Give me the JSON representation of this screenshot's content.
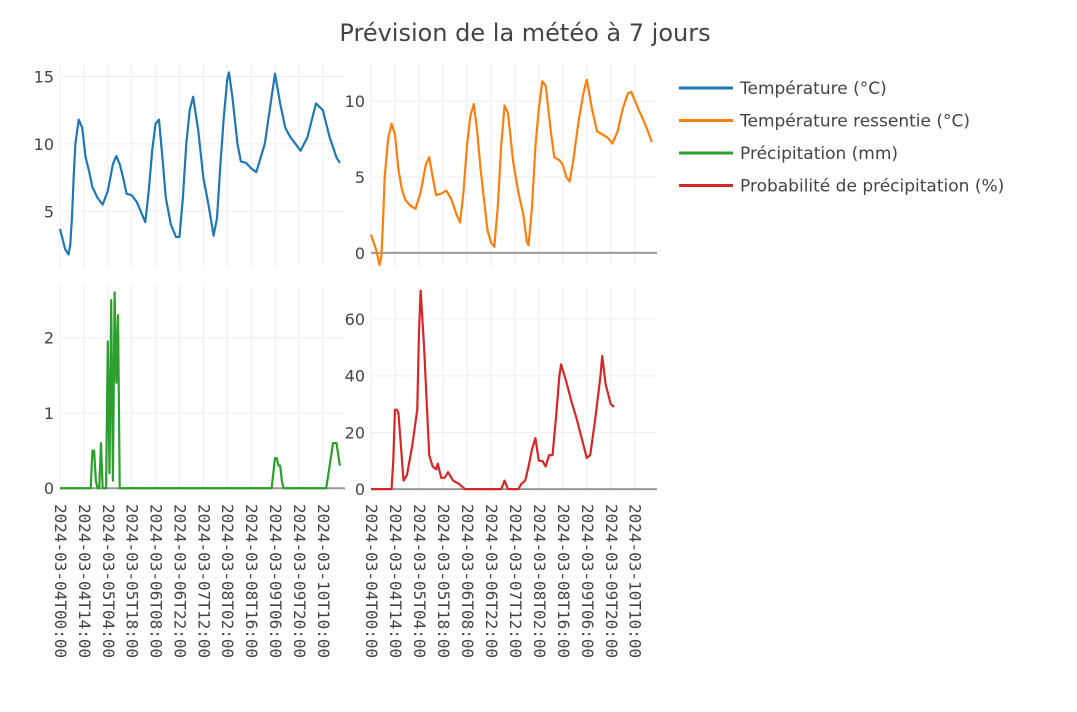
{
  "chart_data": {
    "type": "line",
    "title": "Prévision de la météo à 7 jours",
    "legend_position": "right",
    "grid": true,
    "x_tick_labels": [
      "2024-03-04T00:00",
      "2024-03-04T14:00",
      "2024-03-05T04:00",
      "2024-03-05T18:00",
      "2024-03-06T08:00",
      "2024-03-06T22:00",
      "2024-03-07T12:00",
      "2024-03-08T02:00",
      "2024-03-08T16:00",
      "2024-03-09T06:00",
      "2024-03-09T20:00",
      "2024-03-10T10:00"
    ],
    "x_range": [
      "2024-03-04T00:00",
      "2024-03-10T23:00"
    ],
    "series": [
      {
        "name": "Température (°C)",
        "color": "#1f77b4",
        "subplot": "top-left",
        "y_ticks": [
          5,
          10,
          15
        ],
        "ylim": [
          0.8,
          16.0
        ],
        "points": [
          [
            "2024-03-04T00:00",
            3.7
          ],
          [
            "2024-03-04T03:00",
            2.2
          ],
          [
            "2024-03-04T05:00",
            1.8
          ],
          [
            "2024-03-04T06:00",
            2.5
          ],
          [
            "2024-03-04T07:00",
            4.5
          ],
          [
            "2024-03-04T08:00",
            7.5
          ],
          [
            "2024-03-04T09:00",
            10
          ],
          [
            "2024-03-04T11:00",
            11.8
          ],
          [
            "2024-03-04T13:00",
            11.2
          ],
          [
            "2024-03-04T15:00",
            9
          ],
          [
            "2024-03-04T17:00",
            8
          ],
          [
            "2024-03-04T19:00",
            6.8
          ],
          [
            "2024-03-04T22:00",
            6
          ],
          [
            "2024-03-05T01:00",
            5.5
          ],
          [
            "2024-03-05T04:00",
            6.5
          ],
          [
            "2024-03-05T07:00",
            8.5
          ],
          [
            "2024-03-05T09:00",
            9.1
          ],
          [
            "2024-03-05T11:00",
            8.5
          ],
          [
            "2024-03-05T13:00",
            7.5
          ],
          [
            "2024-03-05T15:00",
            6.3
          ],
          [
            "2024-03-05T18:00",
            6.2
          ],
          [
            "2024-03-05T21:00",
            5.7
          ],
          [
            "2024-03-06T00:00",
            4.8
          ],
          [
            "2024-03-06T02:00",
            4.2
          ],
          [
            "2024-03-06T04:00",
            6.5
          ],
          [
            "2024-03-06T06:00",
            9.5
          ],
          [
            "2024-03-06T08:00",
            11.5
          ],
          [
            "2024-03-06T10:00",
            11.8
          ],
          [
            "2024-03-06T12:00",
            9
          ],
          [
            "2024-03-06T14:00",
            6
          ],
          [
            "2024-03-06T17:00",
            4
          ],
          [
            "2024-03-06T20:00",
            3.1
          ],
          [
            "2024-03-06T22:00",
            3.1
          ],
          [
            "2024-03-07T00:00",
            6
          ],
          [
            "2024-03-07T02:00",
            10
          ],
          [
            "2024-03-07T04:00",
            12.5
          ],
          [
            "2024-03-07T06:00",
            13.5
          ],
          [
            "2024-03-07T09:00",
            11
          ],
          [
            "2024-03-07T12:00",
            7.5
          ],
          [
            "2024-03-07T15:00",
            5.5
          ],
          [
            "2024-03-07T18:00",
            3.2
          ],
          [
            "2024-03-07T20:00",
            4.5
          ],
          [
            "2024-03-07T22:00",
            8.5
          ],
          [
            "2024-03-08T00:00",
            12
          ],
          [
            "2024-03-08T02:00",
            14.8
          ],
          [
            "2024-03-08T03:00",
            15.3
          ],
          [
            "2024-03-08T05:00",
            13.5
          ],
          [
            "2024-03-08T08:00",
            10
          ],
          [
            "2024-03-08T10:00",
            8.7
          ],
          [
            "2024-03-08T13:00",
            8.6
          ],
          [
            "2024-03-08T16:00",
            8.2
          ],
          [
            "2024-03-08T19:00",
            7.9
          ],
          [
            "2024-03-09T00:00",
            10
          ],
          [
            "2024-03-09T04:00",
            13.5
          ],
          [
            "2024-03-09T06:00",
            15.2
          ],
          [
            "2024-03-09T09:00",
            13
          ],
          [
            "2024-03-09T12:00",
            11.2
          ],
          [
            "2024-03-09T15:00",
            10.5
          ],
          [
            "2024-03-09T18:00",
            10
          ],
          [
            "2024-03-09T21:00",
            9.5
          ],
          [
            "2024-03-10T01:00",
            10.5
          ],
          [
            "2024-03-10T04:00",
            12
          ],
          [
            "2024-03-10T06:00",
            13
          ],
          [
            "2024-03-10T10:00",
            12.5
          ],
          [
            "2024-03-10T14:00",
            10.5
          ],
          [
            "2024-03-10T18:00",
            9
          ],
          [
            "2024-03-10T20:00",
            8.6
          ]
        ]
      },
      {
        "name": "Température ressentie (°C)",
        "color": "#ff7f0e",
        "subplot": "top-right",
        "y_ticks": [
          0,
          5,
          10
        ],
        "ylim": [
          -1.0,
          12.5
        ],
        "points": [
          [
            "2024-03-04T00:00",
            1.2
          ],
          [
            "2024-03-04T03:00",
            0.2
          ],
          [
            "2024-03-04T05:00",
            -0.8
          ],
          [
            "2024-03-04T06:00",
            -0.3
          ],
          [
            "2024-03-04T07:00",
            2
          ],
          [
            "2024-03-04T08:00",
            5
          ],
          [
            "2024-03-04T10:00",
            7.5
          ],
          [
            "2024-03-04T12:00",
            8.5
          ],
          [
            "2024-03-04T14:00",
            7.8
          ],
          [
            "2024-03-04T16:00",
            5.5
          ],
          [
            "2024-03-04T18:00",
            4.2
          ],
          [
            "2024-03-04T20:00",
            3.5
          ],
          [
            "2024-03-04T23:00",
            3.1
          ],
          [
            "2024-03-05T02:00",
            2.9
          ],
          [
            "2024-03-05T05:00",
            4
          ],
          [
            "2024-03-05T08:00",
            5.8
          ],
          [
            "2024-03-05T10:00",
            6.3
          ],
          [
            "2024-03-05T12:00",
            5
          ],
          [
            "2024-03-05T14:00",
            3.8
          ],
          [
            "2024-03-05T17:00",
            3.9
          ],
          [
            "2024-03-05T20:00",
            4.1
          ],
          [
            "2024-03-05T23:00",
            3.5
          ],
          [
            "2024-03-06T02:00",
            2.5
          ],
          [
            "2024-03-06T04:00",
            2
          ],
          [
            "2024-03-06T06:00",
            4
          ],
          [
            "2024-03-06T08:00",
            7
          ],
          [
            "2024-03-06T10:00",
            9
          ],
          [
            "2024-03-06T12:00",
            9.8
          ],
          [
            "2024-03-06T14:00",
            8
          ],
          [
            "2024-03-06T16:00",
            5.5
          ],
          [
            "2024-03-06T18:00",
            3.5
          ],
          [
            "2024-03-06T20:00",
            1.5
          ],
          [
            "2024-03-06T22:00",
            0.7
          ],
          [
            "2024-03-07T00:00",
            0.4
          ],
          [
            "2024-03-07T02:00",
            3
          ],
          [
            "2024-03-07T04:00",
            7
          ],
          [
            "2024-03-07T06:00",
            9.7
          ],
          [
            "2024-03-07T08:00",
            9.2
          ],
          [
            "2024-03-07T11:00",
            6
          ],
          [
            "2024-03-07T14:00",
            4
          ],
          [
            "2024-03-07T17:00",
            2.5
          ],
          [
            "2024-03-07T19:00",
            0.7
          ],
          [
            "2024-03-07T20:00",
            0.5
          ],
          [
            "2024-03-07T22:00",
            3
          ],
          [
            "2024-03-08T00:00",
            7
          ],
          [
            "2024-03-08T02:00",
            9.5
          ],
          [
            "2024-03-08T04:00",
            11.3
          ],
          [
            "2024-03-08T06:00",
            11
          ],
          [
            "2024-03-08T09:00",
            8
          ],
          [
            "2024-03-08T11:00",
            6.3
          ],
          [
            "2024-03-08T14:00",
            6.1
          ],
          [
            "2024-03-08T16:00",
            5.8
          ],
          [
            "2024-03-08T18:00",
            5
          ],
          [
            "2024-03-08T20:00",
            4.7
          ],
          [
            "2024-03-08T22:00",
            6
          ],
          [
            "2024-03-09T01:00",
            8.5
          ],
          [
            "2024-03-09T04:00",
            10.5
          ],
          [
            "2024-03-09T06:00",
            11.4
          ],
          [
            "2024-03-09T09:00",
            9.5
          ],
          [
            "2024-03-09T12:00",
            8
          ],
          [
            "2024-03-09T15:00",
            7.8
          ],
          [
            "2024-03-09T18:00",
            7.6
          ],
          [
            "2024-03-09T21:00",
            7.2
          ],
          [
            "2024-03-10T00:00",
            8
          ],
          [
            "2024-03-10T03:00",
            9.5
          ],
          [
            "2024-03-10T06:00",
            10.5
          ],
          [
            "2024-03-10T08:00",
            10.6
          ],
          [
            "2024-03-10T12:00",
            9.5
          ],
          [
            "2024-03-10T16:00",
            8.5
          ],
          [
            "2024-03-10T20:00",
            7.3
          ]
        ]
      },
      {
        "name": "Précipitation (mm)",
        "color": "#2ca02c",
        "subplot": "bottom-left",
        "y_ticks": [
          0,
          1,
          2
        ],
        "ylim": [
          -0.05,
          2.7
        ],
        "points": [
          [
            "2024-03-04T00:00",
            0
          ],
          [
            "2024-03-04T18:00",
            0
          ],
          [
            "2024-03-04T19:00",
            0.5
          ],
          [
            "2024-03-04T20:00",
            0.5
          ],
          [
            "2024-03-04T21:00",
            0.1
          ],
          [
            "2024-03-04T22:00",
            0
          ],
          [
            "2024-03-04T23:00",
            0
          ],
          [
            "2024-03-05T00:00",
            0.6
          ],
          [
            "2024-03-05T01:00",
            0
          ],
          [
            "2024-03-05T03:00",
            0
          ],
          [
            "2024-03-05T04:00",
            1.95
          ],
          [
            "2024-03-05T05:00",
            0.2
          ],
          [
            "2024-03-05T06:00",
            2.5
          ],
          [
            "2024-03-05T07:00",
            0.1
          ],
          [
            "2024-03-05T08:00",
            2.6
          ],
          [
            "2024-03-05T09:00",
            1.4
          ],
          [
            "2024-03-05T10:00",
            2.3
          ],
          [
            "2024-03-05T11:00",
            0
          ],
          [
            "2024-03-09T00:00",
            0
          ],
          [
            "2024-03-09T04:00",
            0
          ],
          [
            "2024-03-09T05:00",
            0.2
          ],
          [
            "2024-03-09T06:00",
            0.4
          ],
          [
            "2024-03-09T07:00",
            0.4
          ],
          [
            "2024-03-09T08:00",
            0.3
          ],
          [
            "2024-03-09T09:00",
            0.3
          ],
          [
            "2024-03-09T10:00",
            0.1
          ],
          [
            "2024-03-09T11:00",
            0
          ],
          [
            "2024-03-10T12:00",
            0
          ],
          [
            "2024-03-10T14:00",
            0.3
          ],
          [
            "2024-03-10T16:00",
            0.6
          ],
          [
            "2024-03-10T18:00",
            0.6
          ],
          [
            "2024-03-10T20:00",
            0.3
          ]
        ]
      },
      {
        "name": "Probabilité de précipitation (%)",
        "color": "#d62728",
        "subplot": "bottom-right",
        "y_ticks": [
          0,
          20,
          40,
          60
        ],
        "ylim": [
          -1,
          72
        ],
        "points": [
          [
            "2024-03-04T00:00",
            0
          ],
          [
            "2024-03-04T12:00",
            0
          ],
          [
            "2024-03-04T13:00",
            10
          ],
          [
            "2024-03-04T14:00",
            28
          ],
          [
            "2024-03-04T15:00",
            28
          ],
          [
            "2024-03-04T16:00",
            27
          ],
          [
            "2024-03-04T19:00",
            3
          ],
          [
            "2024-03-04T21:00",
            5
          ],
          [
            "2024-03-05T00:00",
            15
          ],
          [
            "2024-03-05T03:00",
            28
          ],
          [
            "2024-03-05T04:00",
            55
          ],
          [
            "2024-03-05T05:00",
            70
          ],
          [
            "2024-03-05T07:00",
            50
          ],
          [
            "2024-03-05T10:00",
            12
          ],
          [
            "2024-03-05T12:00",
            8
          ],
          [
            "2024-03-05T14:00",
            7
          ],
          [
            "2024-03-05T15:00",
            9
          ],
          [
            "2024-03-05T17:00",
            4
          ],
          [
            "2024-03-05T19:00",
            4
          ],
          [
            "2024-03-05T21:00",
            6
          ],
          [
            "2024-03-06T00:00",
            3
          ],
          [
            "2024-03-06T03:00",
            2
          ],
          [
            "2024-03-06T05:00",
            1
          ],
          [
            "2024-03-06T07:00",
            0
          ],
          [
            "2024-03-07T04:00",
            0
          ],
          [
            "2024-03-07T06:00",
            3
          ],
          [
            "2024-03-07T08:00",
            0
          ],
          [
            "2024-03-07T14:00",
            0
          ],
          [
            "2024-03-07T16:00",
            2
          ],
          [
            "2024-03-07T18:00",
            3
          ],
          [
            "2024-03-07T20:00",
            8
          ],
          [
            "2024-03-07T22:00",
            14
          ],
          [
            "2024-03-08T00:00",
            18
          ],
          [
            "2024-03-08T02:00",
            10
          ],
          [
            "2024-03-08T04:00",
            10
          ],
          [
            "2024-03-08T06:00",
            8
          ],
          [
            "2024-03-08T08:00",
            12
          ],
          [
            "2024-03-08T10:00",
            12
          ],
          [
            "2024-03-08T12:00",
            25
          ],
          [
            "2024-03-08T14:00",
            40
          ],
          [
            "2024-03-08T15:00",
            44
          ],
          [
            "2024-03-08T18:00",
            38
          ],
          [
            "2024-03-08T21:00",
            31
          ],
          [
            "2024-03-09T00:00",
            25
          ],
          [
            "2024-03-09T03:00",
            18
          ],
          [
            "2024-03-09T06:00",
            11
          ],
          [
            "2024-03-09T08:00",
            12
          ],
          [
            "2024-03-09T11:00",
            25
          ],
          [
            "2024-03-09T14:00",
            40
          ],
          [
            "2024-03-09T15:00",
            47
          ],
          [
            "2024-03-09T17:00",
            37
          ],
          [
            "2024-03-09T20:00",
            30
          ],
          [
            "2024-03-09T22:00",
            29
          ]
        ]
      }
    ]
  }
}
